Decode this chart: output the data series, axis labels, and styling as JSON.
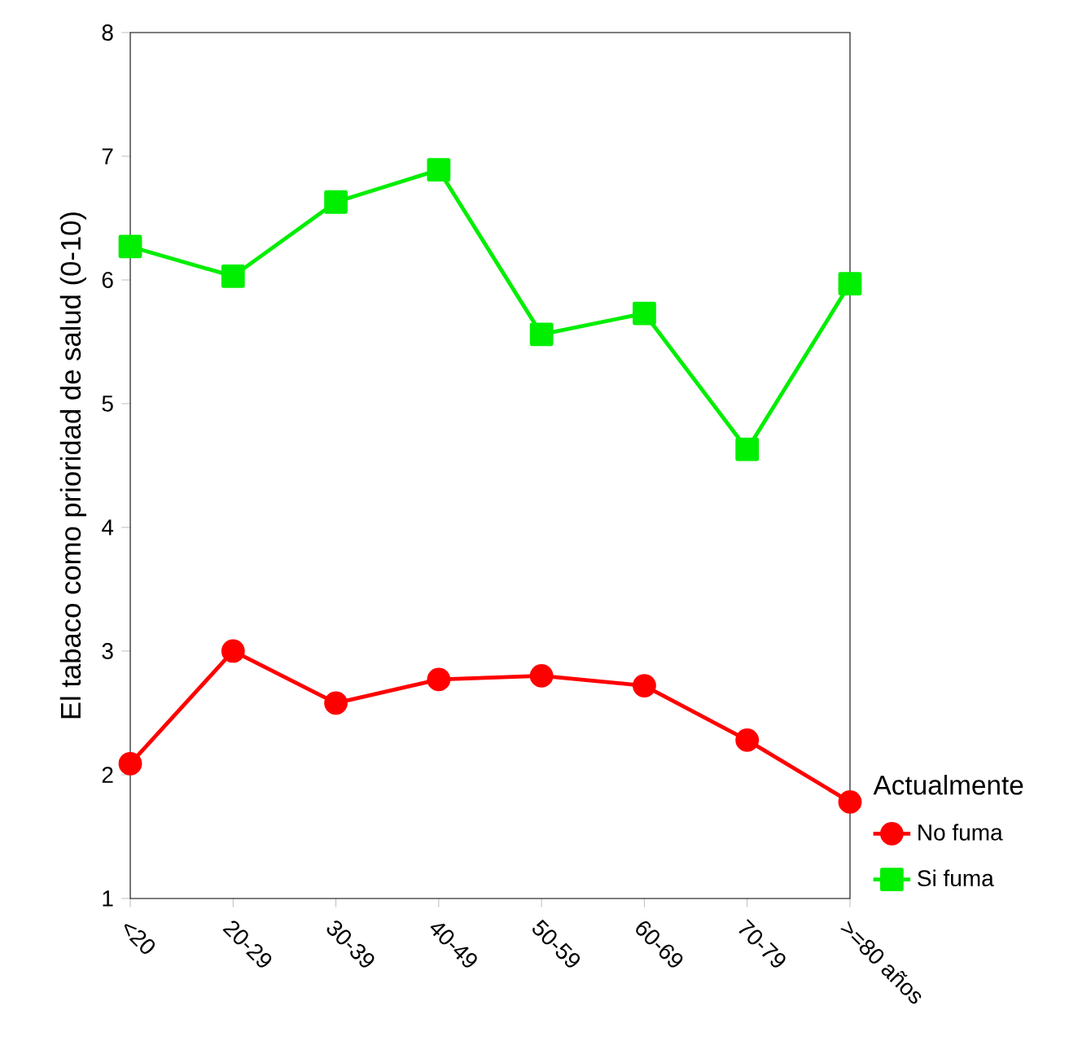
{
  "chart_data": {
    "type": "line",
    "ylabel": "El tabaco como prioridad de salud (0-10)",
    "legend_title": "Actualmente",
    "legend": "right",
    "categories": [
      "<20",
      "20-29",
      "30-39",
      "40-49",
      "50-59",
      "60-69",
      "70-79",
      ">=80 años"
    ],
    "ylim": [
      1,
      8
    ],
    "yticks": [
      1,
      2,
      3,
      4,
      5,
      6,
      7,
      8
    ],
    "grid": false,
    "series": [
      {
        "name": "No fuma",
        "color": "#ff0000",
        "marker": "circle",
        "values": [
          2.09,
          3.0,
          2.58,
          2.77,
          2.8,
          2.72,
          2.28,
          1.78
        ]
      },
      {
        "name": "Si fuma",
        "color": "#00ee00",
        "marker": "square",
        "values": [
          6.27,
          6.03,
          6.63,
          6.89,
          5.56,
          5.73,
          4.63,
          5.97
        ]
      }
    ]
  }
}
